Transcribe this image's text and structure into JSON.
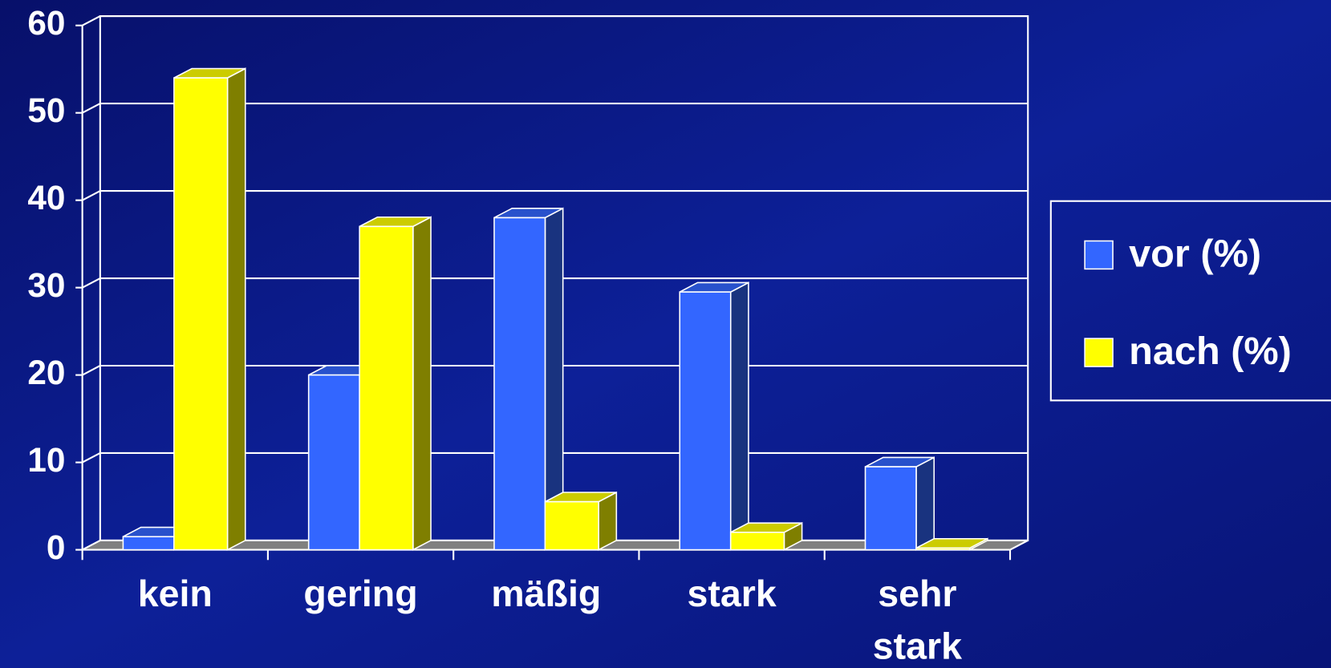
{
  "chart_data": {
    "type": "bar3d",
    "categories": [
      "kein",
      "gering",
      "mäßig",
      "stark",
      "sehr stark"
    ],
    "series": [
      {
        "name": "vor (%)",
        "color": "#3366ff",
        "values": [
          1.5,
          20,
          38,
          29.5,
          9.5
        ]
      },
      {
        "name": "nach (%)",
        "color": "#ffff00",
        "values": [
          54,
          37,
          5.5,
          2,
          0.2
        ]
      }
    ],
    "ylim": [
      0,
      60
    ],
    "yticks": [
      0,
      10,
      20,
      30,
      40,
      50,
      60
    ],
    "grid": true,
    "legend": "right"
  }
}
